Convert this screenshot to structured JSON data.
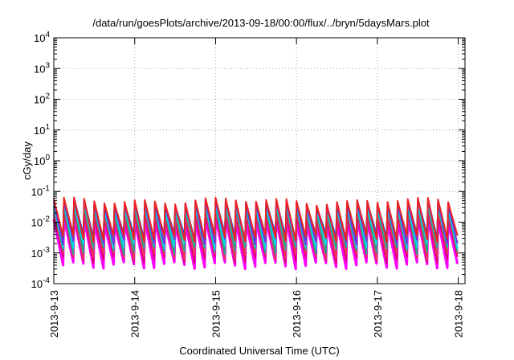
{
  "chart_data": {
    "type": "line",
    "title": "/data/run/goesPlots/archive/2013-09-18/00:00/flux/../bryn/5daysMars.plot",
    "xlabel": "Coordinated Universal Time (UTC)",
    "ylabel": "cGy/day",
    "y_scale": "log",
    "ylim": [
      0.0001,
      10000
    ],
    "y_ticks": [
      {
        "value": 0.0001,
        "base": "10",
        "exp": "-4"
      },
      {
        "value": 0.001,
        "base": "10",
        "exp": "-3"
      },
      {
        "value": 0.01,
        "base": "10",
        "exp": "-2"
      },
      {
        "value": 0.1,
        "base": "10",
        "exp": "-1"
      },
      {
        "value": 1,
        "base": "10",
        "exp": "0"
      },
      {
        "value": 10,
        "base": "10",
        "exp": "1"
      },
      {
        "value": 100,
        "base": "10",
        "exp": "2"
      },
      {
        "value": 1000,
        "base": "10",
        "exp": "3"
      },
      {
        "value": 10000,
        "base": "10",
        "exp": "4"
      }
    ],
    "xlim": [
      "2013-09-13",
      "2013-09-18 02:00"
    ],
    "x_ticks": [
      "2013-9-13",
      "2013-9-14",
      "2013-9-15",
      "2013-9-16",
      "2013-9-17",
      "2013-9-18"
    ],
    "grid": true,
    "sawtooth_period_hours": 3,
    "series": [
      {
        "color": "#ff00ff",
        "peak": 0.011,
        "trough": 0.0004
      },
      {
        "color": "#dd0077",
        "peak": 0.016,
        "trough": 0.0006
      },
      {
        "color": "#e8365a",
        "peak": 0.022,
        "trough": 0.0008
      },
      {
        "color": "#2f9e8a",
        "peak": 0.028,
        "trough": 0.0012
      },
      {
        "color": "#00d8e0",
        "peak": 0.032,
        "trough": 0.0018
      },
      {
        "color": "#7733dd",
        "peak": 0.04,
        "trough": 0.0025
      },
      {
        "color": "#2255ee",
        "peak": 0.045,
        "trough": 0.0035
      },
      {
        "color": "#ee2222",
        "peak": 0.05,
        "trough": 0.003
      }
    ]
  }
}
